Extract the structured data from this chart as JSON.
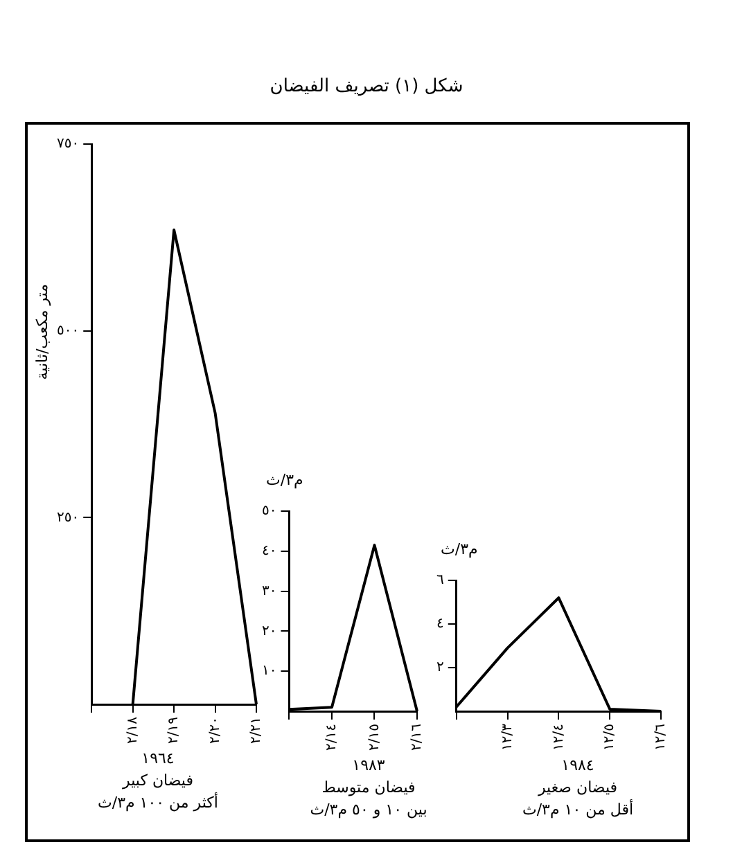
{
  "chart_data": [
    {
      "type": "line",
      "title": "شكل (١) تصريف الفيضان",
      "ylabel": "متر مكعب/ثانية",
      "xlabel": "١٩٦٤",
      "annotations": [
        "فيضان كبير",
        "أكثر من ١٠٠ م٣/ث"
      ],
      "categories": [
        null,
        "٢/١٨",
        "٢/١٩",
        "٢/٢٠",
        "٢/٢١"
      ],
      "values": [
        null,
        0,
        635,
        390,
        0
      ],
      "color": "#000000",
      "ylim": [
        0,
        750
      ],
      "yticks": [
        {
          "value": 250,
          "label": "٢٥٠"
        },
        {
          "value": 500,
          "label": "٥٠٠"
        },
        {
          "value": 750,
          "label": "٧٥٠"
        }
      ],
      "grid": false,
      "marker": "none",
      "line_style": "solid"
    },
    {
      "type": "line",
      "ylabel": "م٣/ث",
      "xlabel": "١٩٨٣",
      "annotations": [
        "فيضان متوسط",
        "بين ١٠ و ٥٠ م٣/ث"
      ],
      "categories": [
        null,
        "٢/١٤",
        "٢/١٥",
        "٢/١٦"
      ],
      "values": [
        0.5,
        1,
        41.5,
        0
      ],
      "color": "#000000",
      "ylim": [
        0,
        50
      ],
      "yticks": [
        {
          "value": 10,
          "label": "١٠"
        },
        {
          "value": 20,
          "label": "٢٠"
        },
        {
          "value": 30,
          "label": "٣٠"
        },
        {
          "value": 40,
          "label": "٤٠"
        },
        {
          "value": 50,
          "label": "٥٠"
        }
      ],
      "grid": false,
      "marker": "none",
      "line_style": "solid"
    },
    {
      "type": "line",
      "ylabel": "م٣/ث",
      "xlabel": "١٩٨٤",
      "annotations": [
        "فيضان صغير",
        "أقل من ١٠ م٣/ث"
      ],
      "categories": [
        null,
        "١٢/٣",
        "١٢/٤",
        "١٢/٥",
        "١٢/٦"
      ],
      "values": [
        0.2,
        2.9,
        5.2,
        0.1,
        0
      ],
      "color": "#000000",
      "ylim": [
        0,
        6
      ],
      "yticks": [
        {
          "value": 2,
          "label": "٢"
        },
        {
          "value": 4,
          "label": "٤"
        },
        {
          "value": 6,
          "label": "٦"
        }
      ],
      "grid": false,
      "marker": "none",
      "line_style": "solid"
    }
  ]
}
